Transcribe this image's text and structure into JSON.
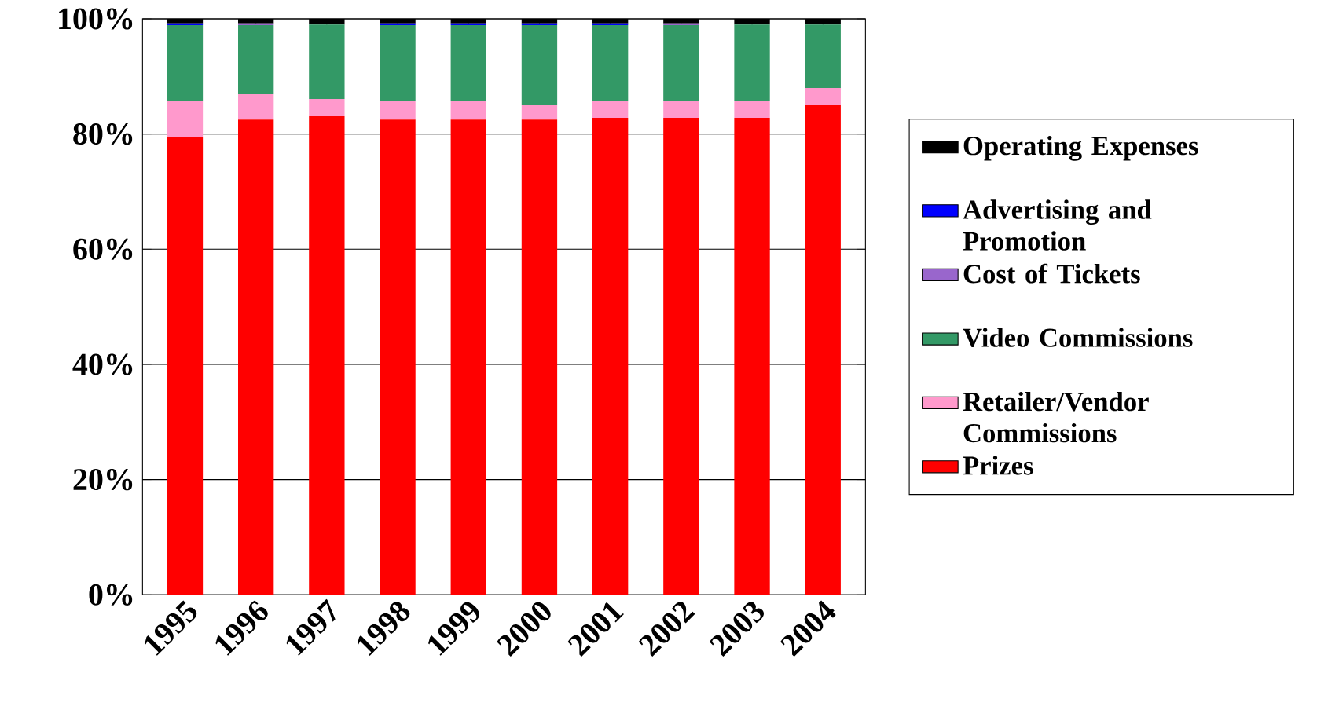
{
  "chart_data": {
    "type": "bar",
    "stacked": true,
    "categories": [
      "1995",
      "1996",
      "1997",
      "1998",
      "1999",
      "2000",
      "2001",
      "2002",
      "2003",
      "2004"
    ],
    "series": [
      {
        "name": "Prizes",
        "color": "#ff0000",
        "values": [
          79.4,
          82.5,
          83.1,
          82.5,
          82.5,
          82.5,
          82.8,
          82.8,
          82.8,
          85.0
        ]
      },
      {
        "name": "Retailer/Vendor Commissions",
        "color": "#ff99cc",
        "values": [
          6.4,
          4.4,
          3.0,
          3.3,
          3.3,
          2.5,
          3.0,
          3.0,
          3.0,
          3.0
        ]
      },
      {
        "name": "Video Commissions",
        "color": "#339966",
        "values": [
          13.1,
          12.0,
          12.9,
          13.1,
          13.1,
          13.9,
          13.1,
          13.1,
          13.2,
          11.0
        ]
      },
      {
        "name": "Cost of Tickets",
        "color": "#9966cc",
        "values": [
          0,
          0.3,
          0,
          0,
          0,
          0,
          0,
          0.3,
          0,
          0
        ]
      },
      {
        "name": "Advertising and Promotion",
        "color": "#0000ff",
        "values": [
          0.3,
          0,
          0,
          0.3,
          0.3,
          0.3,
          0.3,
          0,
          0,
          0
        ]
      },
      {
        "name": "Operating Expenses",
        "color": "#000000",
        "values": [
          0.8,
          0.8,
          1.0,
          0.8,
          0.8,
          0.8,
          0.8,
          0.8,
          1.0,
          1.0
        ]
      }
    ],
    "ylim": [
      0,
      100
    ],
    "yticks": [
      {
        "value": 0,
        "label": "0%"
      },
      {
        "value": 20,
        "label": "20%"
      },
      {
        "value": 40,
        "label": "40%"
      },
      {
        "value": 60,
        "label": "60%"
      },
      {
        "value": 80,
        "label": "80%"
      },
      {
        "value": 100,
        "label": "100%"
      }
    ],
    "grid": "y",
    "legend": "right"
  }
}
